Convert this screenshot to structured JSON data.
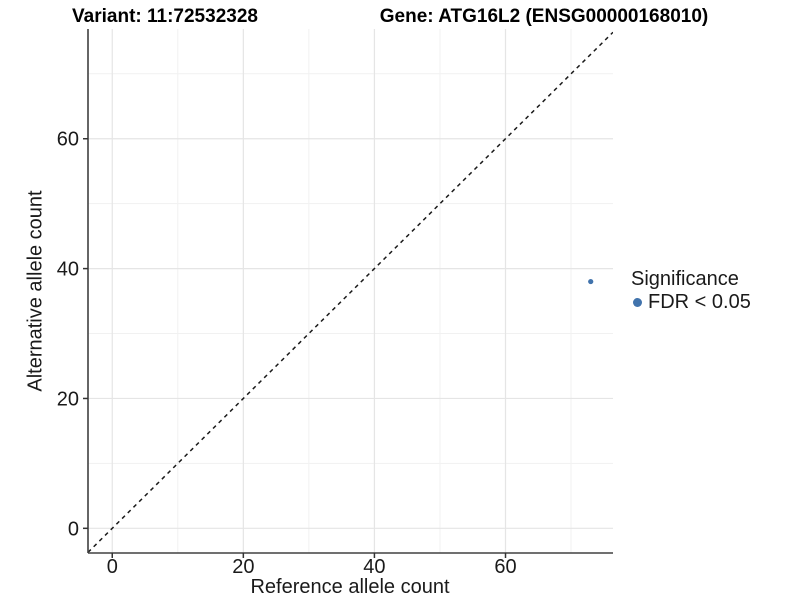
{
  "titles": {
    "variant": "Variant: 11:72532328",
    "gene": "Gene: ATG16L2 (ENSG00000168010)"
  },
  "colors": {
    "point": "#4173AC",
    "grid_major": "#e5e5e5",
    "grid_minor": "#f1f1f1",
    "axis_line": "#404040",
    "tick_mark": "#333333",
    "text": "#1a1a1a",
    "diagonal": "#1a1a1a",
    "background": "#ffffff"
  },
  "chart_data": {
    "type": "scatter",
    "title": "Variant: 11:72532328  /  Gene: ATG16L2 (ENSG00000168010)",
    "xlabel": "Reference allele count",
    "ylabel": "Alternative allele count",
    "xlim": [
      -3.7,
      76.4
    ],
    "ylim": [
      -3.8,
      76.9
    ],
    "xticks": [
      0,
      20,
      40,
      60
    ],
    "yticks": [
      0,
      20,
      40,
      60
    ],
    "xminor": [
      10,
      30,
      50,
      70
    ],
    "yminor": [
      10,
      30,
      50,
      70
    ],
    "grid": true,
    "series": [
      {
        "name": "FDR < 0.05",
        "color": "#4173AC",
        "points": [
          {
            "x": 73,
            "y": 38
          }
        ]
      }
    ],
    "reference_line": {
      "type": "abline",
      "slope": 1,
      "intercept": 0,
      "style": "dashed"
    },
    "legend": {
      "position": "right",
      "title": "Significance",
      "entries": [
        {
          "label": "FDR < 0.05",
          "color": "#4173AC"
        }
      ]
    }
  }
}
